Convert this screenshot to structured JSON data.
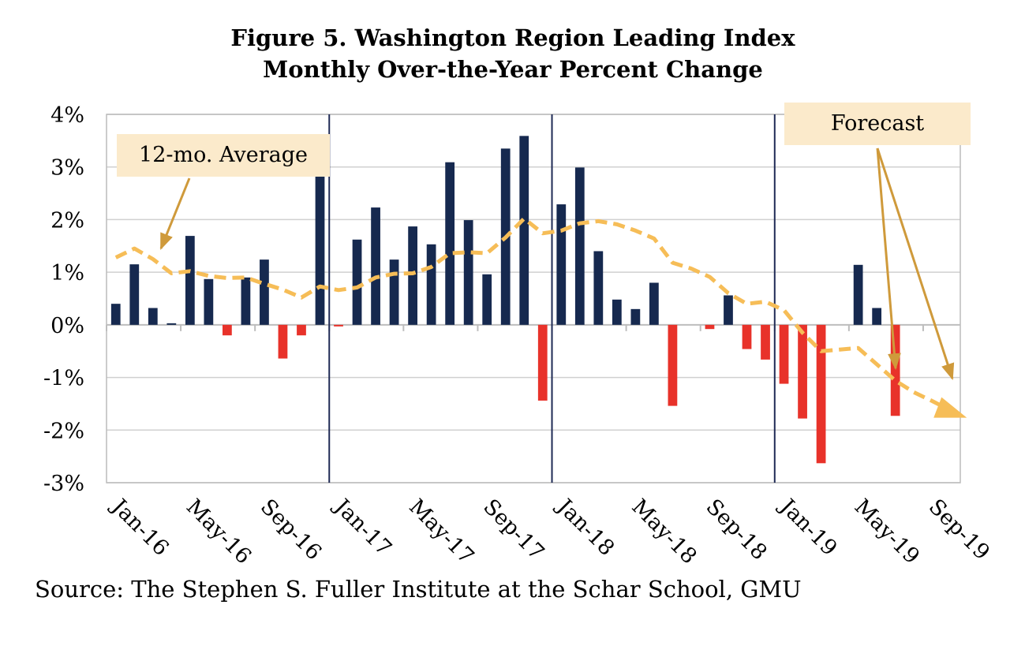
{
  "title": {
    "line1": "Figure 5. Washington Region Leading Index",
    "line2": "Monthly Over-the-Year Percent Change"
  },
  "source": "Source: The Stephen S. Fuller Institute at the Schar School, GMU",
  "annotations": {
    "average_label": "12-mo. Average",
    "forecast_label": "Forecast"
  },
  "colors": {
    "positive_bar": "#16294f",
    "negative_bar": "#e8322a",
    "average_line": "#f6bd57",
    "arrow": "#cf9a3b",
    "annotation_bg": "#fbeacb",
    "divider": "#1f2a55",
    "grid": "#d0d0d0"
  },
  "chart_data": {
    "type": "bar",
    "title": "Figure 5. Washington Region Leading Index Monthly Over-the-Year Percent Change",
    "xlabel": "",
    "ylabel": "",
    "ylim": [
      -3,
      4
    ],
    "yticks": [
      -3,
      -2,
      -1,
      0,
      1,
      2,
      3,
      4
    ],
    "ytick_labels": [
      "-3%",
      "-2%",
      "-1%",
      "0%",
      "1%",
      "2%",
      "3%",
      "4%"
    ],
    "grid": true,
    "months": [
      "Jan-16",
      "Feb-16",
      "Mar-16",
      "Apr-16",
      "May-16",
      "Jun-16",
      "Jul-16",
      "Aug-16",
      "Sep-16",
      "Oct-16",
      "Nov-16",
      "Dec-16",
      "Jan-17",
      "Feb-17",
      "Mar-17",
      "Apr-17",
      "May-17",
      "Jun-17",
      "Jul-17",
      "Aug-17",
      "Sep-17",
      "Oct-17",
      "Nov-17",
      "Dec-17",
      "Jan-18",
      "Feb-18",
      "Mar-18",
      "Apr-18",
      "May-18",
      "Jun-18",
      "Jul-18",
      "Aug-18",
      "Sep-18",
      "Oct-18",
      "Nov-18",
      "Dec-18",
      "Jan-19",
      "Feb-19",
      "Mar-19",
      "Apr-19",
      "May-19",
      "Jun-19",
      "Jul-19",
      "Aug-19",
      "Sep-19",
      "Oct-19"
    ],
    "tick_labels": [
      "Jan-16",
      "May-16",
      "Sep-16",
      "Jan-17",
      "May-17",
      "Sep-17",
      "Jan-18",
      "May-18",
      "Sep-18",
      "Jan-19",
      "May-19",
      "Sep-19"
    ],
    "tick_month_indices": [
      0,
      4,
      8,
      12,
      16,
      20,
      24,
      28,
      32,
      36,
      40,
      44
    ],
    "year_dividers_after_index": [
      11,
      23,
      35
    ],
    "series": [
      {
        "name": "Monthly Over-the-Year Percent Change",
        "kind": "bar",
        "values": [
          0.4,
          1.15,
          0.32,
          0.03,
          1.69,
          0.87,
          -0.2,
          0.9,
          1.24,
          -0.64,
          -0.2,
          2.85,
          -0.03,
          1.62,
          2.23,
          1.24,
          1.87,
          1.53,
          3.09,
          1.99,
          0.96,
          3.35,
          3.59,
          -1.44,
          2.29,
          2.99,
          1.4,
          0.48,
          0.3,
          0.8,
          -1.54,
          0.0,
          -0.08,
          0.56,
          -0.46,
          -0.66,
          -1.12,
          -1.78,
          -2.63,
          0.0,
          1.14,
          0.32,
          -1.73,
          null,
          null,
          null
        ]
      },
      {
        "name": "12-mo. Average",
        "kind": "line-dashed",
        "values": [
          1.28,
          1.45,
          1.25,
          0.98,
          1.02,
          0.93,
          0.89,
          0.9,
          0.78,
          0.67,
          0.52,
          0.73,
          0.66,
          0.71,
          0.9,
          0.97,
          0.98,
          1.1,
          1.36,
          1.38,
          1.36,
          1.66,
          2.02,
          1.74,
          1.79,
          1.93,
          1.97,
          1.91,
          1.79,
          1.64,
          1.18,
          1.07,
          0.91,
          0.6,
          0.4,
          0.44,
          0.28,
          -0.15,
          -0.5,
          -0.47,
          -0.44,
          -0.75,
          -1.06,
          -1.28,
          -1.45,
          -1.63
        ]
      }
    ]
  }
}
